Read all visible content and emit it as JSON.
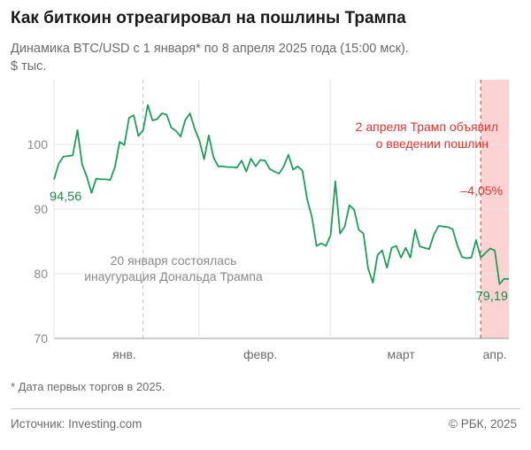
{
  "header": {
    "title": "Как биткоин отреагировал на пошлины Трампа",
    "subtitle": "Динамика BTC/USD с 1 января* по 8 апреля 2025 года (15:00 мск).",
    "unit": "$ тыс."
  },
  "footer": {
    "footnote": "* Дата первых торгов в 2025.",
    "source": "Источник: Investing.com",
    "copyright": "© РБК, 2025"
  },
  "colors": {
    "line": "#1f9e5a",
    "highlight": "#fbd3d3",
    "accent": "#e5322d",
    "grid": "#e4e4e4"
  },
  "chart_data": {
    "type": "line",
    "ylim": [
      70,
      110
    ],
    "yticks": [
      "70",
      "80",
      "90",
      "100"
    ],
    "xticks": [
      "янв.",
      "февр.",
      "март",
      "апр."
    ],
    "series": [
      {
        "x": [
          "2025-01-01",
          "2025-01-02",
          "2025-01-03",
          "2025-01-04",
          "2025-01-05",
          "2025-01-06",
          "2025-01-07",
          "2025-01-08",
          "2025-01-09",
          "2025-01-10",
          "2025-01-11",
          "2025-01-12",
          "2025-01-13",
          "2025-01-14",
          "2025-01-15",
          "2025-01-16",
          "2025-01-17",
          "2025-01-18",
          "2025-01-19",
          "2025-01-20",
          "2025-01-21",
          "2025-01-22",
          "2025-01-23",
          "2025-01-24",
          "2025-01-25",
          "2025-01-26",
          "2025-01-27",
          "2025-01-28",
          "2025-01-29",
          "2025-01-30",
          "2025-01-31",
          "2025-02-01",
          "2025-02-02",
          "2025-02-03",
          "2025-02-04",
          "2025-02-05",
          "2025-02-06",
          "2025-02-07",
          "2025-02-08",
          "2025-02-09",
          "2025-02-10",
          "2025-02-11",
          "2025-02-12",
          "2025-02-13",
          "2025-02-14",
          "2025-02-15",
          "2025-02-16",
          "2025-02-17",
          "2025-02-18",
          "2025-02-19",
          "2025-02-20",
          "2025-02-21",
          "2025-02-22",
          "2025-02-23",
          "2025-02-24",
          "2025-02-25",
          "2025-02-26",
          "2025-02-27",
          "2025-02-28",
          "2025-03-01",
          "2025-03-02",
          "2025-03-03",
          "2025-03-04",
          "2025-03-05",
          "2025-03-06",
          "2025-03-07",
          "2025-03-08",
          "2025-03-09",
          "2025-03-10",
          "2025-03-11",
          "2025-03-12",
          "2025-03-13",
          "2025-03-14",
          "2025-03-15",
          "2025-03-16",
          "2025-03-17",
          "2025-03-18",
          "2025-03-19",
          "2025-03-20",
          "2025-03-21",
          "2025-03-22",
          "2025-03-23",
          "2025-03-24",
          "2025-03-25",
          "2025-03-26",
          "2025-03-27",
          "2025-03-28",
          "2025-03-29",
          "2025-03-30",
          "2025-03-31",
          "2025-04-01",
          "2025-04-02",
          "2025-04-03",
          "2025-04-04",
          "2025-04-05",
          "2025-04-06",
          "2025-04-07",
          "2025-04-08"
        ],
        "values": [
          94.56,
          97.0,
          98.1,
          98.2,
          98.3,
          102.2,
          96.9,
          95.0,
          92.5,
          94.7,
          94.6,
          94.6,
          94.5,
          96.5,
          100.4,
          99.9,
          104.1,
          104.5,
          101.3,
          102.2,
          106.1,
          103.7,
          103.9,
          104.8,
          104.6,
          102.6,
          102.1,
          101.2,
          103.8,
          104.8,
          102.4,
          100.6,
          97.7,
          101.4,
          98.0,
          96.6,
          96.6,
          96.5,
          96.5,
          96.4,
          97.5,
          95.8,
          97.8,
          96.6,
          97.6,
          97.5,
          96.2,
          95.8,
          95.5,
          96.6,
          98.4,
          96.1,
          96.6,
          95.9,
          91.5,
          88.8,
          84.3,
          84.7,
          84.3,
          86.0,
          94.3,
          86.2,
          87.3,
          90.6,
          89.9,
          86.8,
          86.2,
          80.8,
          78.6,
          82.9,
          83.6,
          80.9,
          84.0,
          84.3,
          82.5,
          84.0,
          82.5,
          86.8,
          84.2,
          84.0,
          83.8,
          86.0,
          87.4,
          87.3,
          87.2,
          86.9,
          84.4,
          82.6,
          82.4,
          82.5,
          85.2,
          82.5,
          83.2,
          83.9,
          83.6,
          78.4,
          79.2,
          79.19
        ]
      }
    ],
    "annotations": {
      "start_value": "94,56",
      "end_value": "79,19",
      "inauguration": [
        "20 января состоялась",
        "инаугурация Дональда Трампа"
      ],
      "tariffs": [
        "2 апреля Трамп объявил",
        "о введении пошлин"
      ],
      "change": "–4,05%"
    }
  }
}
